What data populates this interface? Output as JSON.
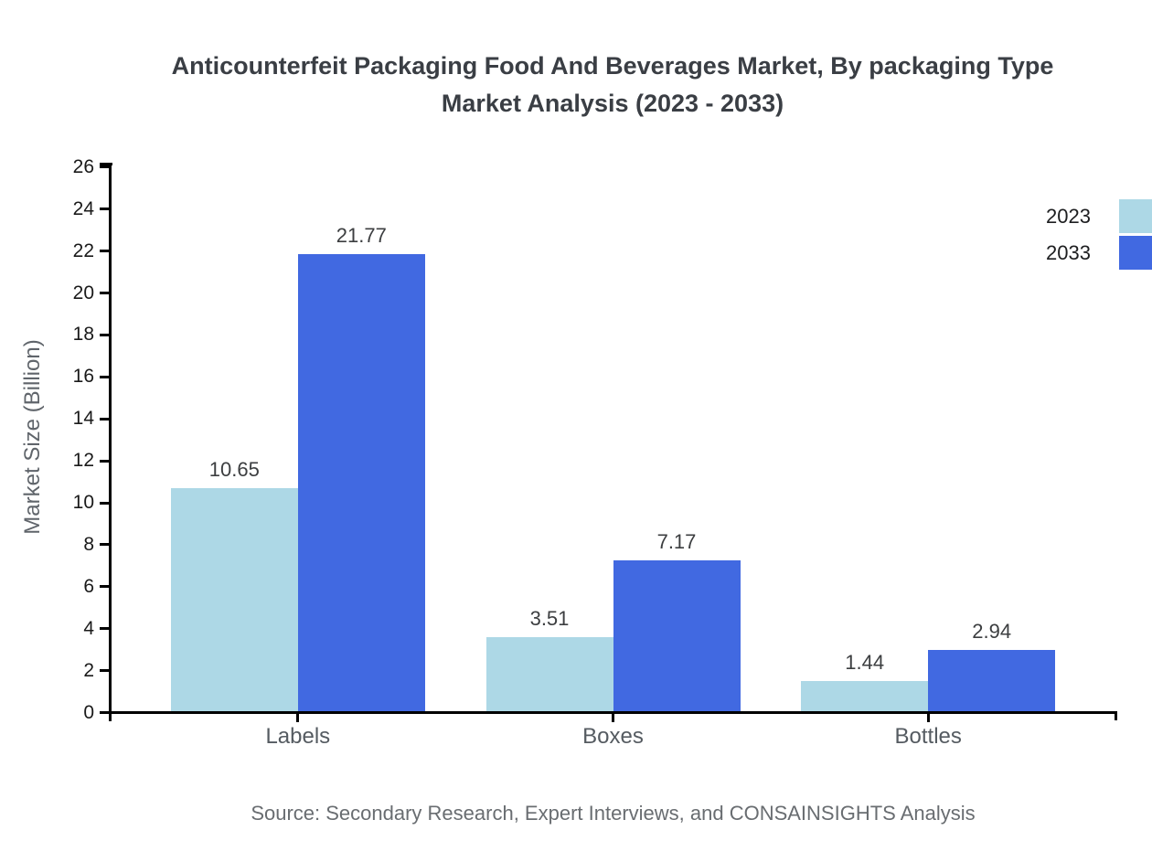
{
  "header": {
    "title_line1": "Anticounterfeit Packaging Food And Beverages Market, By packaging Type",
    "title_line2": "Market Analysis (2023 - 2033)"
  },
  "source": "Source: Secondary Research, Expert Interviews, and CONSAINSIGHTS Analysis",
  "colors": {
    "series_2023": "#ADD8E6",
    "series_2033": "#4169E1",
    "axis": "#000000",
    "title_text": "#3a3e44",
    "category_text": "#555b61",
    "value_label_text": "#3c3e40",
    "muted_text": "#696d71"
  },
  "legend": {
    "items": [
      {
        "label": "2023",
        "color": "#ADD8E6"
      },
      {
        "label": "2033",
        "color": "#4169E1"
      }
    ]
  },
  "chart_data": {
    "type": "bar",
    "title": "Anticounterfeit Packaging Food And Beverages Market, By packaging Type Market Analysis (2023 - 2033)",
    "categories": [
      "Labels",
      "Boxes",
      "Bottles"
    ],
    "series": [
      {
        "name": "2023",
        "color": "#ADD8E6",
        "values": [
          10.65,
          3.51,
          1.44
        ]
      },
      {
        "name": "2033",
        "color": "#4169E1",
        "values": [
          21.77,
          7.17,
          2.94
        ]
      }
    ],
    "xlabel": "",
    "ylabel": "Market Size (Billion)",
    "ylim": [
      0,
      26.2
    ],
    "yticks": [
      0,
      2,
      4,
      6,
      8,
      10,
      12,
      14,
      16,
      18,
      20,
      22,
      24,
      26
    ],
    "grid": false,
    "legend_position": "upper right outside",
    "value_labels": true,
    "source_note": "Source: Secondary Research, Expert Interviews, and CONSAINSIGHTS Analysis"
  }
}
